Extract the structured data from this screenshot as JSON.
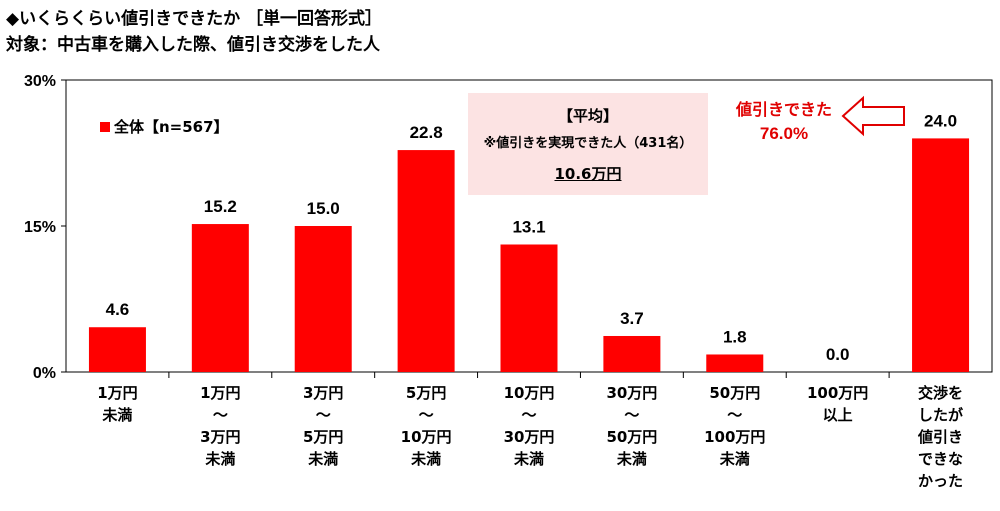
{
  "title": "◆いくらくらい値引きできたか ［単一回答形式］",
  "subtitle": "対象：中古車を購入した際、値引き交渉をした人",
  "legend": "全体【n=567】",
  "average_box": {
    "heading": "【平均】",
    "note": "※値引きを実現できた人（431名）",
    "value": "10.6万円"
  },
  "callout": {
    "text": "値引きできた",
    "percent": "76.0%"
  },
  "colors": {
    "bar": "#ff0000",
    "callout": "#e00000",
    "box": "#fce3e3"
  },
  "chart_data": {
    "type": "bar",
    "categories": [
      [
        "1万円",
        "未満"
      ],
      [
        "1万円",
        "～",
        "3万円",
        "未満"
      ],
      [
        "3万円",
        "～",
        "5万円",
        "未満"
      ],
      [
        "5万円",
        "～",
        "10万円",
        "未満"
      ],
      [
        "10万円",
        "～",
        "30万円",
        "未満"
      ],
      [
        "30万円",
        "～",
        "50万円",
        "未満"
      ],
      [
        "50万円",
        "～",
        "100万円",
        "未満"
      ],
      [
        "100万円",
        "以上"
      ],
      [
        "交渉を",
        "したが",
        "値引き",
        "できな",
        "かった"
      ]
    ],
    "values": [
      4.6,
      15.2,
      15.0,
      22.8,
      13.1,
      3.7,
      1.8,
      0.0,
      24.0
    ],
    "value_labels": [
      "4.6",
      "15.2",
      "15.0",
      "22.8",
      "13.1",
      "3.7",
      "1.8",
      "0.0",
      "24.0"
    ],
    "series": [
      {
        "name": "全体【n=567】",
        "values": [
          4.6,
          15.2,
          15.0,
          22.8,
          13.1,
          3.7,
          1.8,
          0.0,
          24.0
        ]
      }
    ],
    "ylim": [
      0,
      30
    ],
    "yticks": [
      "0%",
      "15%",
      "30%"
    ],
    "ytick_values": [
      0,
      15,
      30
    ],
    "grid": false,
    "legend_position": "top-left"
  }
}
